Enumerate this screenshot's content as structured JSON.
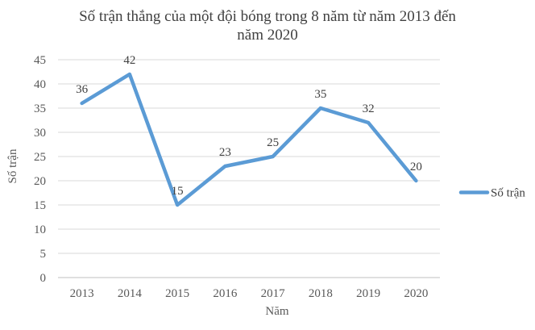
{
  "chart_data": {
    "type": "line",
    "title": "Số trận thắng của một đội bóng trong 8 năm từ năm 2013 đến năm 2020",
    "title_lines": [
      "Số trận thắng của một đội bóng trong 8 năm từ năm 2013 đến",
      "năm 2020"
    ],
    "xlabel": "Năm",
    "ylabel": "Số trận",
    "categories": [
      "2013",
      "2014",
      "2015",
      "2016",
      "2017",
      "2018",
      "2019",
      "2020"
    ],
    "series": [
      {
        "name": "Số trận",
        "values": [
          36,
          42,
          15,
          23,
          25,
          35,
          32,
          20
        ]
      }
    ],
    "ylim": [
      0,
      45
    ],
    "ytick_step": 5,
    "yticks": [
      0,
      5,
      10,
      15,
      20,
      25,
      30,
      35,
      40,
      45
    ],
    "grid": true,
    "data_labels": true,
    "legend_position": "right"
  },
  "colors": {
    "series": "#5B9BD5",
    "gridline": "#D9D9D9",
    "axis_line": "#BFBFBF",
    "tick_text": "#595959",
    "label_text": "#404040"
  }
}
